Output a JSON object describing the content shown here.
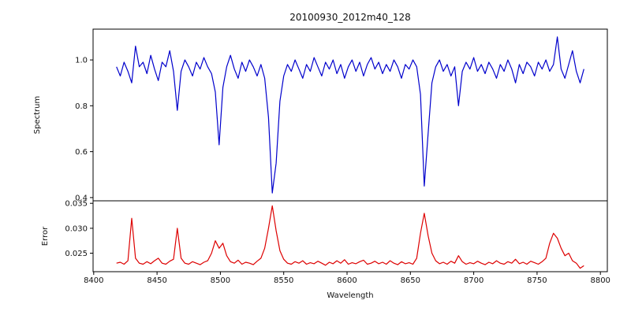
{
  "figure": {
    "background": "#ffffff",
    "frame_color": "#000000"
  },
  "chart_data": {
    "type": "line",
    "title": "20100930_2012m40_128",
    "xlabel": "Wavelength",
    "xlim": [
      8399.5,
      8805.5
    ],
    "x_ticks": [
      8400,
      8450,
      8500,
      8550,
      8600,
      8650,
      8700,
      8750,
      8800
    ],
    "x_start": 8418,
    "x_step": 3,
    "grid": false,
    "legend": "none",
    "subplots": [
      {
        "name": "spectrum",
        "ylabel": "Spectrum",
        "color": "#0000cc",
        "ylim": [
          0.386,
          1.134
        ],
        "y_ticks": [
          0.4,
          0.6,
          0.8,
          1.0
        ],
        "y_tick_labels": [
          "0.4",
          "0.6",
          "0.8",
          "1.0"
        ],
        "values": [
          0.97,
          0.93,
          0.99,
          0.95,
          0.9,
          1.06,
          0.97,
          0.99,
          0.94,
          1.02,
          0.96,
          0.91,
          0.99,
          0.97,
          1.04,
          0.95,
          0.78,
          0.95,
          1.0,
          0.97,
          0.93,
          0.99,
          0.96,
          1.01,
          0.97,
          0.94,
          0.86,
          0.63,
          0.88,
          0.97,
          1.02,
          0.96,
          0.92,
          0.99,
          0.95,
          1.0,
          0.97,
          0.93,
          0.98,
          0.92,
          0.75,
          0.42,
          0.55,
          0.82,
          0.93,
          0.98,
          0.95,
          1.0,
          0.96,
          0.92,
          0.98,
          0.95,
          1.01,
          0.97,
          0.93,
          0.99,
          0.96,
          1.0,
          0.94,
          0.98,
          0.92,
          0.97,
          1.0,
          0.95,
          0.99,
          0.93,
          0.98,
          1.01,
          0.96,
          0.99,
          0.94,
          0.98,
          0.95,
          1.0,
          0.97,
          0.92,
          0.98,
          0.96,
          1.0,
          0.97,
          0.85,
          0.45,
          0.68,
          0.9,
          0.97,
          1.0,
          0.95,
          0.98,
          0.93,
          0.97,
          0.8,
          0.95,
          0.99,
          0.96,
          1.01,
          0.95,
          0.98,
          0.94,
          0.99,
          0.96,
          0.92,
          0.98,
          0.95,
          1.0,
          0.96,
          0.9,
          0.98,
          0.94,
          0.99,
          0.97,
          0.93,
          0.99,
          0.96,
          1.0,
          0.95,
          0.98,
          1.1,
          0.96,
          0.92,
          0.98,
          1.04,
          0.95,
          0.9,
          0.96
        ]
      },
      {
        "name": "error",
        "ylabel": "Error",
        "color": "#dd0000",
        "ylim": [
          0.0213,
          0.0355
        ],
        "y_ticks": [
          0.025,
          0.03,
          0.035
        ],
        "y_tick_labels": [
          "0.025",
          "0.030",
          "0.035"
        ],
        "values": [
          0.023,
          0.0232,
          0.0228,
          0.0235,
          0.032,
          0.024,
          0.023,
          0.0228,
          0.0233,
          0.0229,
          0.0235,
          0.024,
          0.023,
          0.0228,
          0.0234,
          0.0238,
          0.03,
          0.024,
          0.023,
          0.0228,
          0.0233,
          0.023,
          0.0227,
          0.0232,
          0.0235,
          0.025,
          0.0275,
          0.026,
          0.027,
          0.0245,
          0.0233,
          0.023,
          0.0236,
          0.0228,
          0.0232,
          0.023,
          0.0227,
          0.0234,
          0.024,
          0.026,
          0.03,
          0.0345,
          0.0295,
          0.0255,
          0.0238,
          0.023,
          0.0228,
          0.0233,
          0.023,
          0.0235,
          0.0228,
          0.0231,
          0.0229,
          0.0234,
          0.023,
          0.0226,
          0.0232,
          0.0229,
          0.0235,
          0.023,
          0.0237,
          0.0228,
          0.0231,
          0.0229,
          0.0233,
          0.0236,
          0.0228,
          0.023,
          0.0234,
          0.0229,
          0.0232,
          0.0228,
          0.0235,
          0.023,
          0.0227,
          0.0233,
          0.0229,
          0.0231,
          0.0228,
          0.024,
          0.029,
          0.033,
          0.0285,
          0.025,
          0.0235,
          0.0229,
          0.0232,
          0.0228,
          0.0234,
          0.023,
          0.0245,
          0.0233,
          0.0228,
          0.0231,
          0.0229,
          0.0234,
          0.023,
          0.0227,
          0.0232,
          0.0229,
          0.0235,
          0.023,
          0.0228,
          0.0233,
          0.023,
          0.0238,
          0.0229,
          0.0232,
          0.0228,
          0.0234,
          0.0231,
          0.0228,
          0.0233,
          0.024,
          0.027,
          0.029,
          0.028,
          0.026,
          0.0245,
          0.025,
          0.0235,
          0.023,
          0.022,
          0.0225
        ]
      }
    ]
  }
}
